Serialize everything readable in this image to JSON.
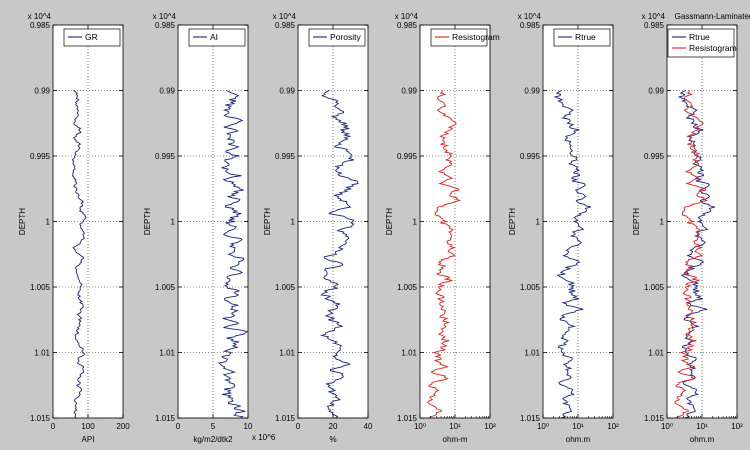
{
  "window": {
    "background": "#c8c8c8"
  },
  "chart_data": [
    {
      "type": "line",
      "ylabel": "DEPTH",
      "ylim": [
        9850,
        10150
      ],
      "y_reversed": true,
      "y_multiplier": "x 10^4",
      "y_ticks": [
        0.985,
        0.99,
        0.995,
        1,
        1.005,
        1.01,
        1.015
      ],
      "y_tick_labels": [
        "0.985",
        "0.99",
        "0.995",
        "1",
        "1.005",
        "1.01",
        "1.015"
      ],
      "xlabel": "API",
      "x_scale": "linear",
      "xlim": [
        0,
        200
      ],
      "x_ticks": [
        0,
        100,
        200
      ],
      "x_tick_labels": [
        "0",
        "100",
        "200"
      ],
      "x_multiplier": "",
      "title": "",
      "grid": "dotted",
      "legend": "top-right",
      "series": [
        {
          "name": "GR",
          "color": "#1a237e",
          "base": 80,
          "amp": 20,
          "sm": 3,
          "seed": 11,
          "drift": [
            [
              9900,
              -5
            ],
            [
              9960,
              -15
            ],
            [
              10000,
              5
            ],
            [
              10040,
              -8
            ],
            [
              10100,
              2
            ],
            [
              10150,
              -20
            ]
          ]
        }
      ]
    },
    {
      "type": "line",
      "ylabel": "DEPTH",
      "ylim": [
        9850,
        10150
      ],
      "y_reversed": true,
      "y_multiplier": "x 10^4",
      "y_ticks": [
        0.985,
        0.99,
        0.995,
        1,
        1.005,
        1.01,
        1.015
      ],
      "y_tick_labels": [
        "0.985",
        "0.99",
        "0.995",
        "1",
        "1.005",
        "1.01",
        "1.015"
      ],
      "xlabel": "kg/m2/dtk2",
      "x_scale": "linear",
      "xlim": [
        0,
        10
      ],
      "x_ticks": [
        0,
        5,
        10
      ],
      "x_tick_labels": [
        "0",
        "5",
        "10"
      ],
      "x_multiplier": "x 10^6",
      "title": "",
      "grid": "dotted",
      "legend": "top-right",
      "series": [
        {
          "name": "AI",
          "color": "#1a237e",
          "base": 7.8,
          "amp": 1.4,
          "sm": 1,
          "seed": 23,
          "drift": [
            [
              9900,
              0
            ],
            [
              10000,
              0
            ],
            [
              10150,
              0
            ]
          ]
        }
      ]
    },
    {
      "type": "line",
      "ylabel": "DEPTH",
      "ylim": [
        9850,
        10150
      ],
      "y_reversed": true,
      "y_multiplier": "x 10^4",
      "y_ticks": [
        0.985,
        0.99,
        0.995,
        1,
        1.005,
        1.01,
        1.015
      ],
      "y_tick_labels": [
        "0.985",
        "0.99",
        "0.995",
        "1",
        "1.005",
        "1.01",
        "1.015"
      ],
      "xlabel": "%",
      "x_scale": "linear",
      "xlim": [
        0,
        40
      ],
      "x_ticks": [
        0,
        20,
        40
      ],
      "x_tick_labels": [
        "0",
        "20",
        "40"
      ],
      "x_multiplier": "",
      "title": "",
      "grid": "dotted",
      "legend": "top-right",
      "series": [
        {
          "name": "Porosity",
          "color": "#1a237e",
          "base": 20,
          "amp": 8,
          "sm": 2,
          "seed": 37,
          "drift": [
            [
              9900,
              2
            ],
            [
              9950,
              8
            ],
            [
              10000,
              6
            ],
            [
              10050,
              -2
            ],
            [
              10100,
              2
            ],
            [
              10150,
              0
            ]
          ]
        }
      ]
    },
    {
      "type": "line",
      "ylabel": "DEPTH",
      "ylim": [
        9850,
        10150
      ],
      "y_reversed": true,
      "y_multiplier": "x 10^4",
      "y_ticks": [
        0.985,
        0.99,
        0.995,
        1,
        1.005,
        1.01,
        1.015
      ],
      "y_tick_labels": [
        "0.985",
        "0.99",
        "0.995",
        "1",
        "1.005",
        "1.01",
        "1.015"
      ],
      "xlabel": "ohm-m",
      "x_scale": "log",
      "xlim": [
        1,
        100
      ],
      "x_ticks": [
        1,
        10,
        100
      ],
      "x_tick_labels": [
        "10⁰",
        "10¹",
        "10²"
      ],
      "x_multiplier": "",
      "title": "",
      "grid": "dotted",
      "legend": "top-right",
      "series": [
        {
          "name": "Resistogram",
          "color": "#e02020",
          "base": 0.6,
          "amp": 0.35,
          "sm": 2,
          "seed": 51,
          "drift": [
            [
              9900,
              -0.1
            ],
            [
              9950,
              0.3
            ],
            [
              10000,
              0.2
            ],
            [
              10050,
              0
            ],
            [
              10100,
              0
            ],
            [
              10150,
              -0.1
            ]
          ]
        }
      ]
    },
    {
      "type": "line",
      "ylabel": "DEPTH",
      "ylim": [
        9850,
        10150
      ],
      "y_reversed": true,
      "y_multiplier": "x 10^4",
      "y_ticks": [
        0.985,
        0.99,
        0.995,
        1,
        1.005,
        1.01,
        1.015
      ],
      "y_tick_labels": [
        "0.985",
        "0.99",
        "0.995",
        "1",
        "1.005",
        "1.01",
        "1.015"
      ],
      "xlabel": "ohm.m",
      "x_scale": "log",
      "xlim": [
        1,
        100
      ],
      "x_ticks": [
        1,
        10,
        100
      ],
      "x_tick_labels": [
        "10⁰",
        "10¹",
        "10²"
      ],
      "x_multiplier": "",
      "title": "",
      "grid": "dotted",
      "legend": "top-right",
      "series": [
        {
          "name": "Rtrue",
          "color": "#1a237e",
          "base": 0.7,
          "amp": 0.35,
          "sm": 2,
          "seed": 67,
          "drift": [
            [
              9900,
              -0.1
            ],
            [
              9950,
              0.35
            ],
            [
              10000,
              0.25
            ],
            [
              10050,
              0
            ],
            [
              10100,
              0
            ],
            [
              10150,
              -0.1
            ]
          ]
        }
      ]
    },
    {
      "type": "line",
      "ylabel": "DEPTH",
      "ylim": [
        9850,
        10150
      ],
      "y_reversed": true,
      "y_multiplier": "x 10^4",
      "y_ticks": [
        0.985,
        0.99,
        0.995,
        1,
        1.005,
        1.01,
        1.015
      ],
      "y_tick_labels": [
        "0.985",
        "0.99",
        "0.995",
        "1",
        "1.005",
        "1.01",
        "1.015"
      ],
      "xlabel": "ohm.m",
      "x_scale": "log",
      "xlim": [
        1,
        100
      ],
      "x_ticks": [
        1,
        10,
        100
      ],
      "x_tick_labels": [
        "10⁰",
        "10¹",
        "10²"
      ],
      "x_multiplier": "",
      "title": "Gassmann-Laminated",
      "grid": "dotted",
      "legend": "top-right",
      "series": [
        {
          "name": "Rtrue",
          "color": "#1a237e",
          "base": 0.7,
          "amp": 0.35,
          "sm": 2,
          "seed": 67,
          "drift": [
            [
              9900,
              -0.1
            ],
            [
              9950,
              0.35
            ],
            [
              10000,
              0.25
            ],
            [
              10050,
              0
            ],
            [
              10100,
              0
            ],
            [
              10150,
              -0.1
            ]
          ]
        },
        {
          "name": "Resistogram",
          "color": "#e02020",
          "base": 0.6,
          "amp": 0.35,
          "sm": 2,
          "seed": 51,
          "drift": [
            [
              9900,
              -0.1
            ],
            [
              9950,
              0.3
            ],
            [
              10000,
              0.2
            ],
            [
              10050,
              0
            ],
            [
              10100,
              0
            ],
            [
              10150,
              -0.1
            ]
          ]
        }
      ]
    }
  ]
}
